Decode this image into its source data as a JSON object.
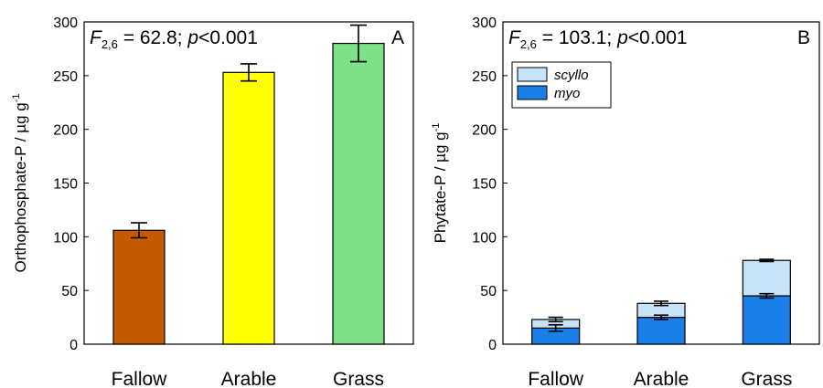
{
  "chart_data": [
    {
      "type": "bar",
      "panel_label": "A",
      "stat_F": "F",
      "stat_F_sub": "2,6",
      "stat_rest_1": " = 62.8; ",
      "stat_p": "p",
      "stat_rest_2": "<0.001",
      "ylabel": "Orthophosphate-P / µg g",
      "ylabel_sup": "-1",
      "ylim": [
        0,
        300
      ],
      "yticks": [
        "0",
        "50",
        "100",
        "150",
        "200",
        "250",
        "300"
      ],
      "categories": [
        "Fallow",
        "Arable",
        "Grass"
      ],
      "values": [
        106,
        253,
        280
      ],
      "errors": [
        7,
        8,
        17
      ],
      "colors": [
        "#c15a00",
        "#ffff00",
        "#7fe08a"
      ],
      "grid": false
    },
    {
      "type": "bar",
      "stacked": true,
      "panel_label": "B",
      "stat_F": "F",
      "stat_F_sub": "2,6",
      "stat_rest_1": " = 103.1; ",
      "stat_p": "p",
      "stat_rest_2": "<0.001",
      "ylabel": "Phytate-P / µg g",
      "ylabel_sup": "-1",
      "ylim": [
        0,
        300
      ],
      "yticks": [
        "0",
        "50",
        "100",
        "150",
        "200",
        "250",
        "300"
      ],
      "categories": [
        "Fallow",
        "Arable",
        "Grass"
      ],
      "series": [
        {
          "name": "myo",
          "values": [
            15,
            25,
            45
          ],
          "errors": [
            3,
            2,
            2
          ],
          "color": "#1a7fe6"
        },
        {
          "name": "scyllo",
          "values": [
            8,
            13,
            33
          ],
          "errors": [
            2,
            2,
            1
          ],
          "color": "#c6e3f7"
        }
      ],
      "legend_position": "upper-left",
      "grid": false
    }
  ]
}
